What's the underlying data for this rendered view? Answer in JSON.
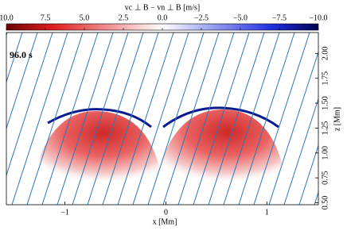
{
  "chart_data": {
    "type": "heatmap",
    "colorbar_label": "vc ⊥ B − vn ⊥ B [m/s]",
    "clim": [
      10,
      -10
    ],
    "cticks": [
      {
        "value": 10,
        "label": "10.0"
      },
      {
        "value": 7.5,
        "label": "7.5"
      },
      {
        "value": 5,
        "label": "5.0"
      },
      {
        "value": 2.5,
        "label": "2.5"
      },
      {
        "value": 0,
        "label": "0.0"
      },
      {
        "value": -2.5,
        "label": "−2.5"
      },
      {
        "value": -5,
        "label": "−5.0"
      },
      {
        "value": -7.5,
        "label": "−7.5"
      },
      {
        "value": -10,
        "label": "−10.0"
      }
    ],
    "annotation": "96.0 s",
    "xlabel": "x [Mm]",
    "ylabel": "z [Mm]",
    "xlim": [
      -1.58,
      1.51
    ],
    "xticks": [
      {
        "value": -1,
        "label": "−1"
      },
      0,
      1
    ],
    "ylim": [
      0.48,
      2.21
    ],
    "yticks": [
      {
        "value": 0.5,
        "label": "0.50"
      },
      {
        "value": 0.75,
        "label": "0.75"
      },
      {
        "value": 1,
        "label": "1.00"
      },
      {
        "value": 1.25,
        "label": "1.25"
      },
      {
        "value": 1.5,
        "label": "1.50"
      },
      {
        "value": 1.75,
        "label": "1.75"
      },
      {
        "value": 2,
        "label": "2.00"
      }
    ]
  }
}
